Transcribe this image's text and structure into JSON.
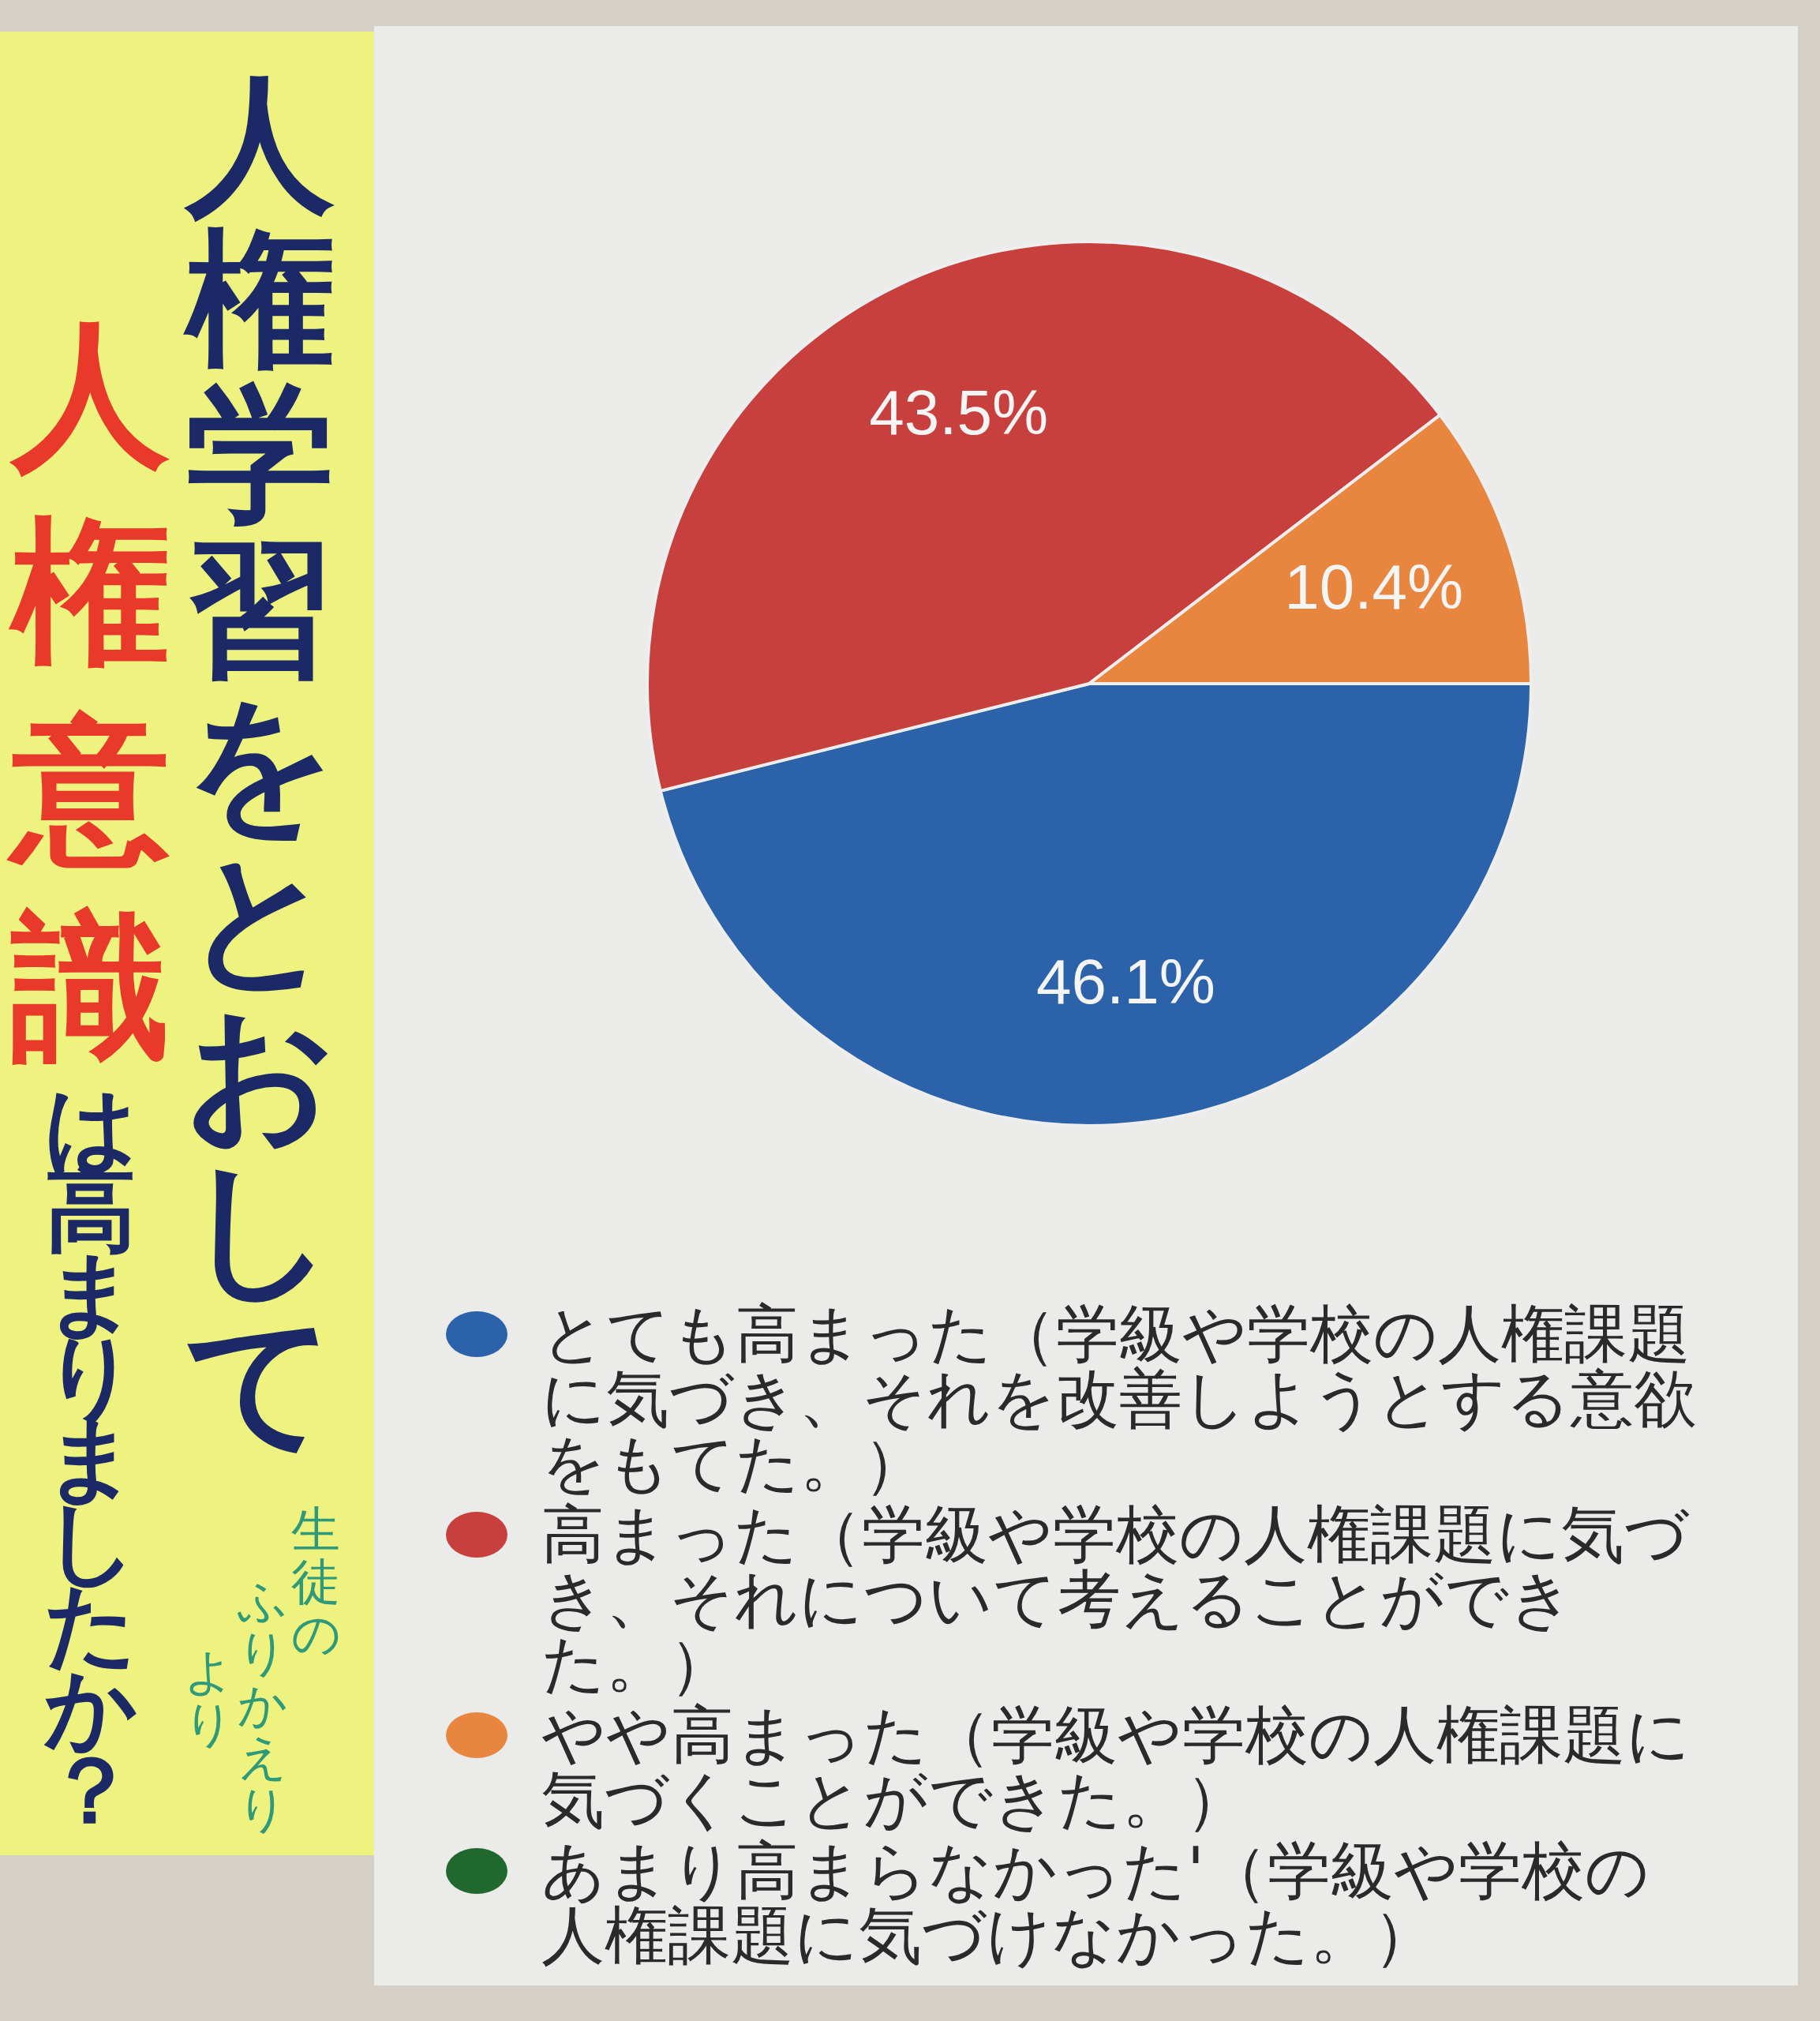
{
  "chart_data": {
    "type": "pie",
    "title": "人権学習をとおして",
    "subtitle": "人権意識は高まりましたか？",
    "categories": [
      "とても高まった（学級や学校の人権課題に気づき、それを改善しようとする意欲をもてた。）",
      "高まった（学級や学校の人権課題に気づき、それについて考えることができた。）",
      "やや高まった（学級や学校の人権課題に気づくことができた。）",
      "あまり高まらなかった'（学級や学校の人権課題に気づけなかった。）"
    ],
    "values": [
      46.1,
      43.5,
      10.4,
      0
    ],
    "colors": [
      "#2b62aa",
      "#c8403d",
      "#e8853f",
      "#21682e"
    ],
    "value_labels": [
      "46.1%",
      "43.5%",
      "10.4%",
      null
    ],
    "legend": "bottom",
    "annotations": [
      "生徒の",
      "ふりかえり",
      "より"
    ]
  }
}
